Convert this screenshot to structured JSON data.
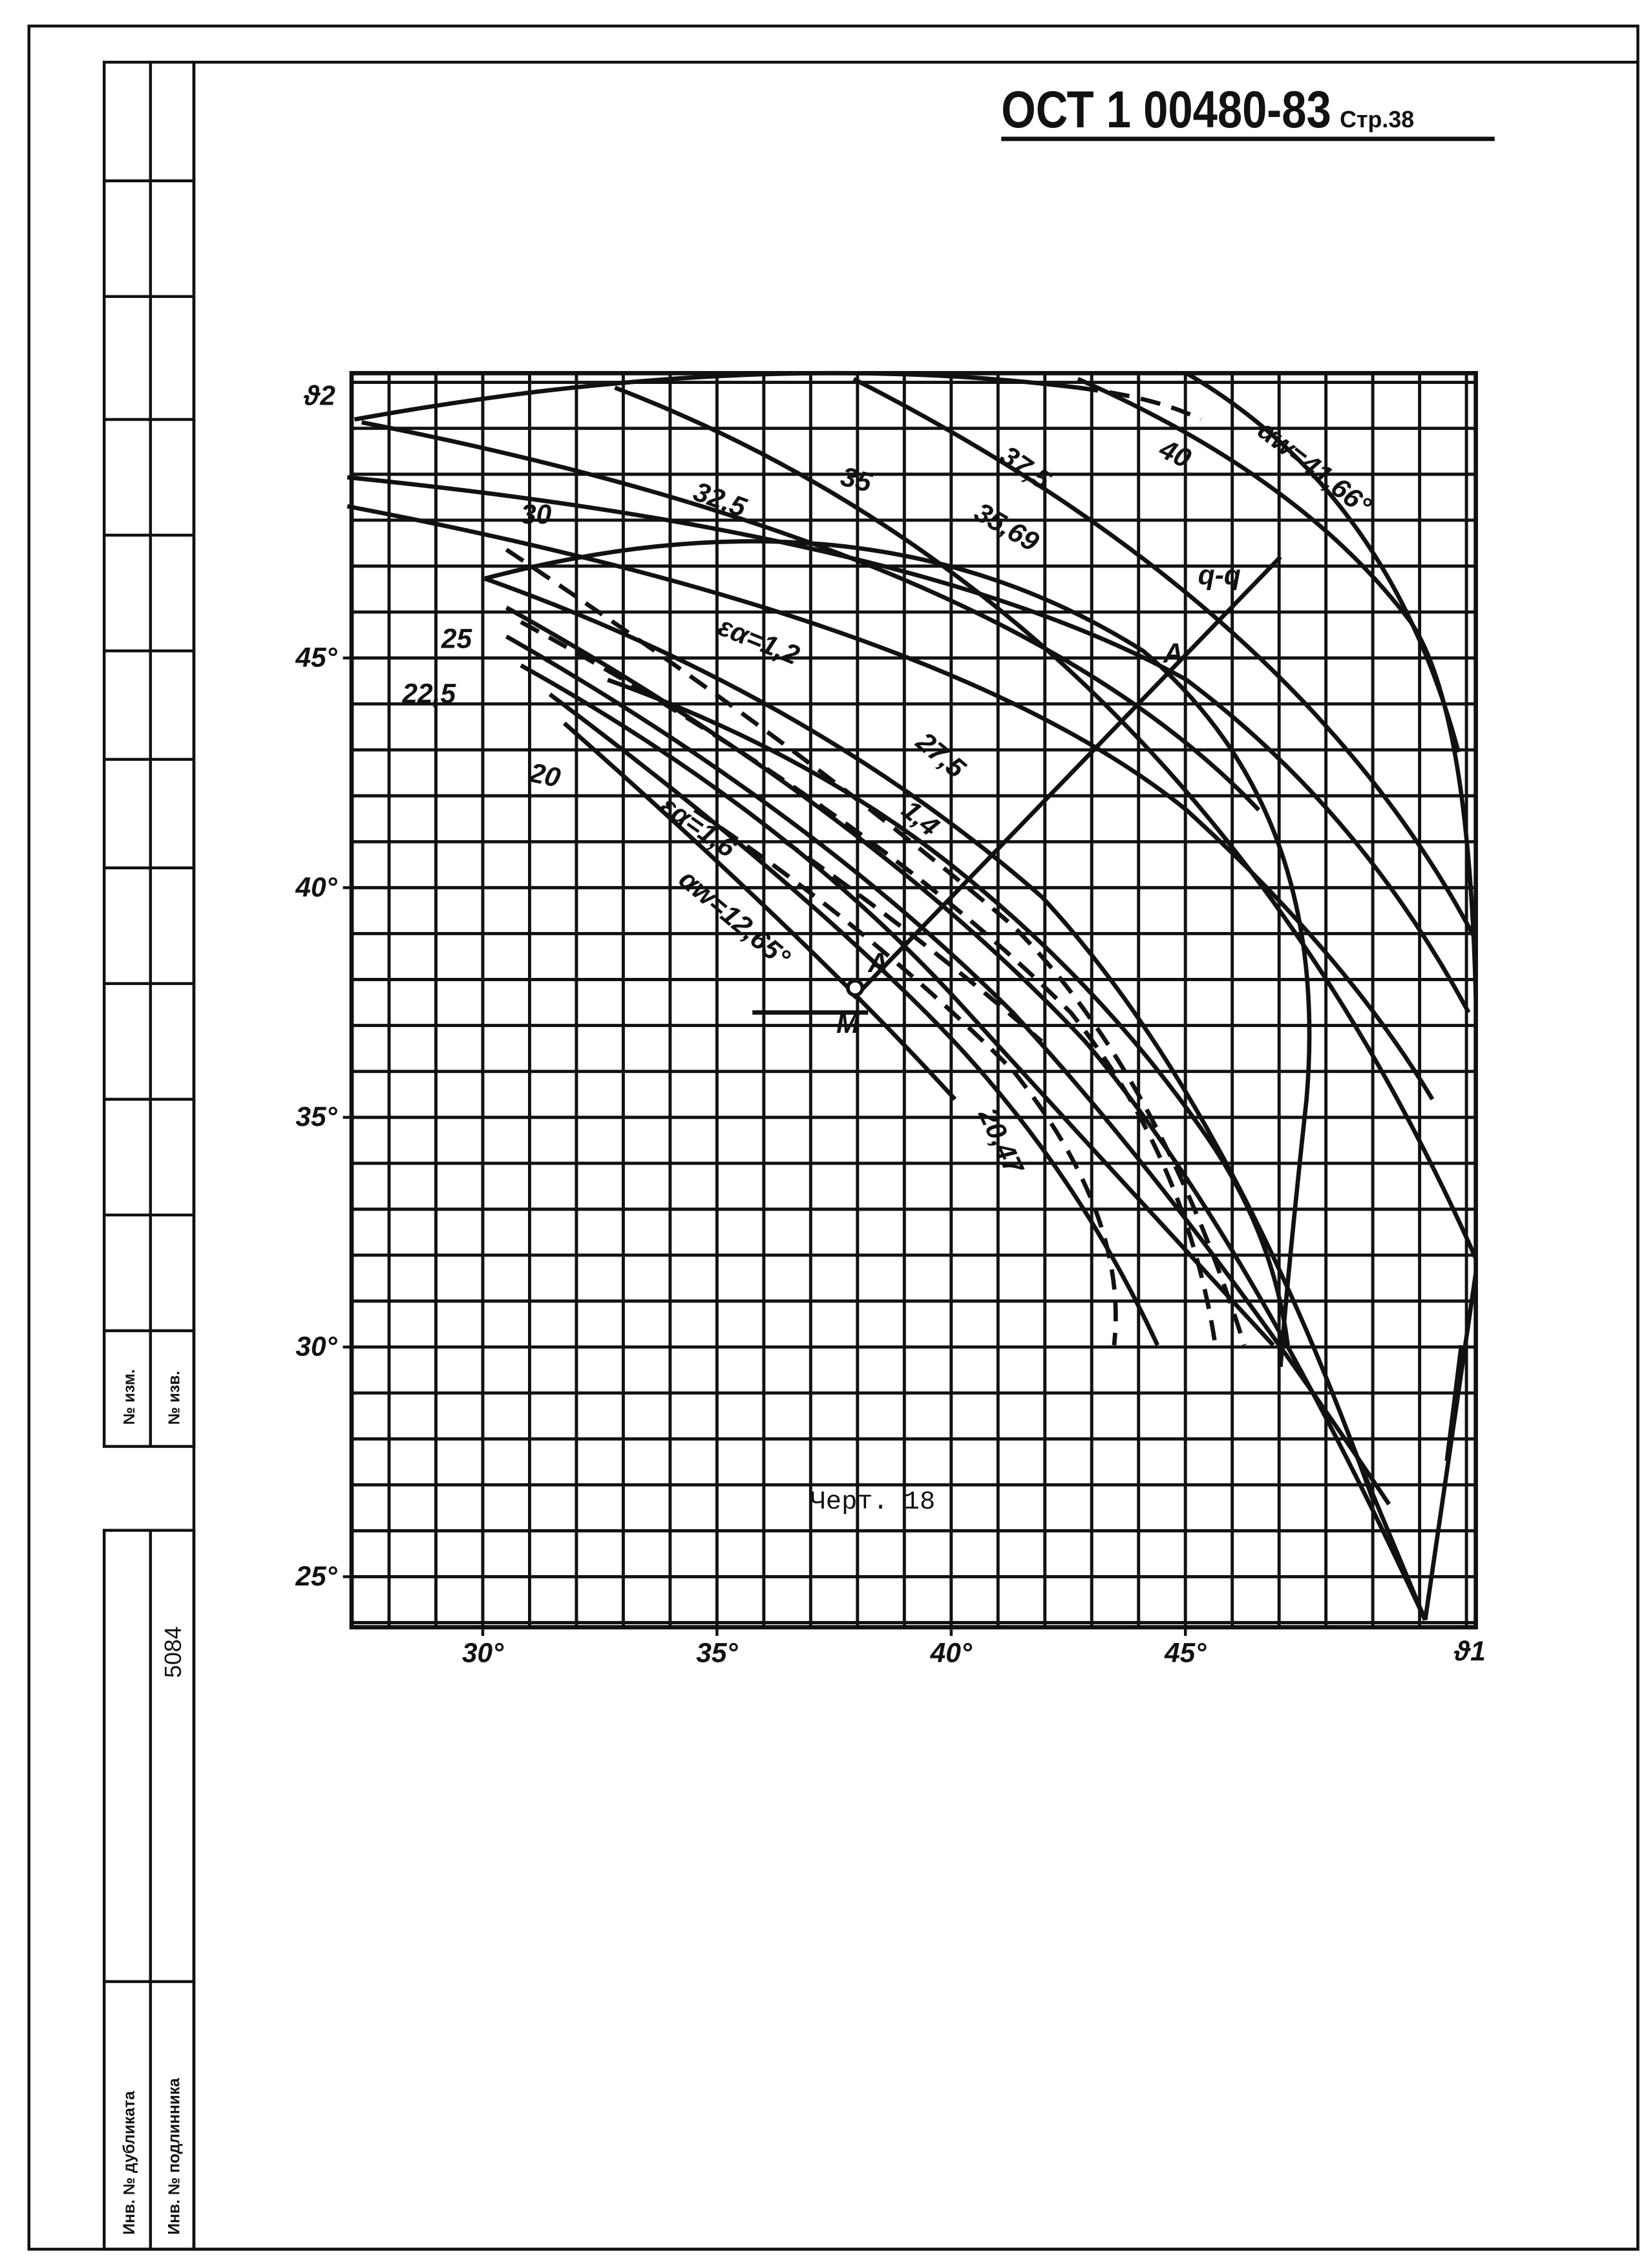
{
  "header": {
    "standard": "ОСТ 1 00480-83",
    "page": "Стр.38"
  },
  "stamp": {
    "change_no": "№ изм.",
    "notice_no": "№ изв.",
    "number": "5084",
    "duplicate_inv": "Инв. № дубликата",
    "original_inv": "Инв. № подлинника"
  },
  "figure": {
    "xlim": [
      27.2,
      51.2
    ],
    "ylim": [
      23.9,
      51.2
    ],
    "xticks": [
      {
        "value": 30,
        "label": "30°"
      },
      {
        "value": 35,
        "label": "35°"
      },
      {
        "value": 40,
        "label": "40°"
      },
      {
        "value": 45,
        "label": "45°"
      }
    ],
    "yticks": [
      {
        "value": 25,
        "label": "25°"
      },
      {
        "value": 30,
        "label": "30°"
      },
      {
        "value": 35,
        "label": "35°"
      },
      {
        "value": 40,
        "label": "40°"
      },
      {
        "value": 45,
        "label": "45°"
      }
    ],
    "x_label": "ϑ1",
    "y_label": "ϑ2",
    "curve_labels": [
      "35",
      "37,5",
      "40",
      "αw=41,66°",
      "32,5",
      "35,69",
      "30",
      "q-q",
      "A",
      "25",
      "22,5",
      "20",
      "εα=1,2",
      "27,5",
      "1,4",
      "εα=1,6",
      "αw=12,65°",
      "A",
      "M",
      "20,47"
    ],
    "caption": "Черт. 18"
  }
}
